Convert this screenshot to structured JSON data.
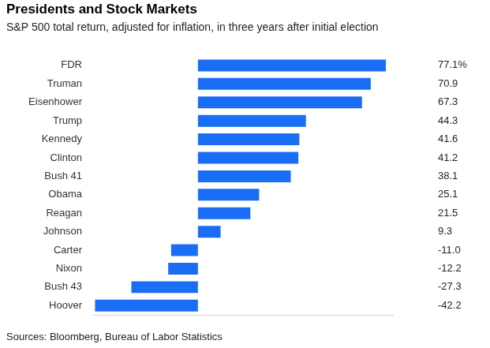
{
  "chart_data": {
    "type": "bar",
    "orientation": "horizontal",
    "title": "Presidents and Stock Markets",
    "subtitle": "S&P 500 total return, adjusted for inflation, in three years after initial election",
    "categories": [
      "FDR",
      "Truman",
      "Eisenhower",
      "Trump",
      "Kennedy",
      "Clinton",
      "Bush 41",
      "Obama",
      "Reagan",
      "Johnson",
      "Carter",
      "Nixon",
      "Bush 43",
      "Hoover"
    ],
    "values": [
      77.1,
      70.9,
      67.3,
      44.3,
      41.6,
      41.2,
      38.1,
      25.1,
      21.5,
      9.3,
      -11.0,
      -12.2,
      -27.3,
      -42.2
    ],
    "value_labels": [
      "77.1%",
      "70.9",
      "67.3",
      "44.3",
      "41.6",
      "41.2",
      "38.1",
      "25.1",
      "21.5",
      "9.3",
      "-11.0",
      "-12.2",
      "-27.3",
      "-42.2"
    ],
    "color": "#1a6ef5",
    "xlim": [
      -43,
      80
    ],
    "xticks": [],
    "grid": false,
    "data_labels": true,
    "tick_labels": "y",
    "source": "Sources: Bloomberg, Bureau of Labor Statistics"
  }
}
